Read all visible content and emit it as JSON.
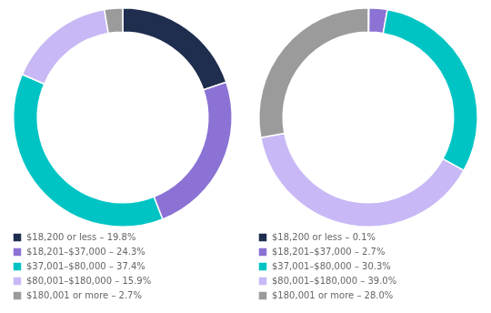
{
  "chart_data": [
    {
      "type": "doughnut",
      "categories": [
        "$18,200 or less – 19.8%",
        "$18,201–$37,000 – 24.3%",
        "$37,001–$80,000 – 37.4%",
        "$80,001–$180,000 – 15.9%",
        "$180,001 or more – 2.7%"
      ],
      "values": [
        19.8,
        24.3,
        37.4,
        15.9,
        2.7
      ],
      "colors": [
        "#1f2d4e",
        "#8b72d4",
        "#00c4c4",
        "#c8b8f5",
        "#9b9b9b"
      ],
      "legend": "bottom"
    },
    {
      "type": "doughnut",
      "categories": [
        "$18,200 or less – 0.1%",
        "$18,201–$37,000 – 2.7%",
        "$37,001–$80,000 – 30.3%",
        "$80,001–$180,000 – 39.0%",
        "$180,001 or more – 28.0%"
      ],
      "values": [
        0.1,
        2.7,
        30.3,
        39.0,
        28.0
      ],
      "colors": [
        "#1f2d4e",
        "#8b72d4",
        "#00c4c4",
        "#c8b8f5",
        "#9b9b9b"
      ],
      "legend": "bottom"
    }
  ]
}
